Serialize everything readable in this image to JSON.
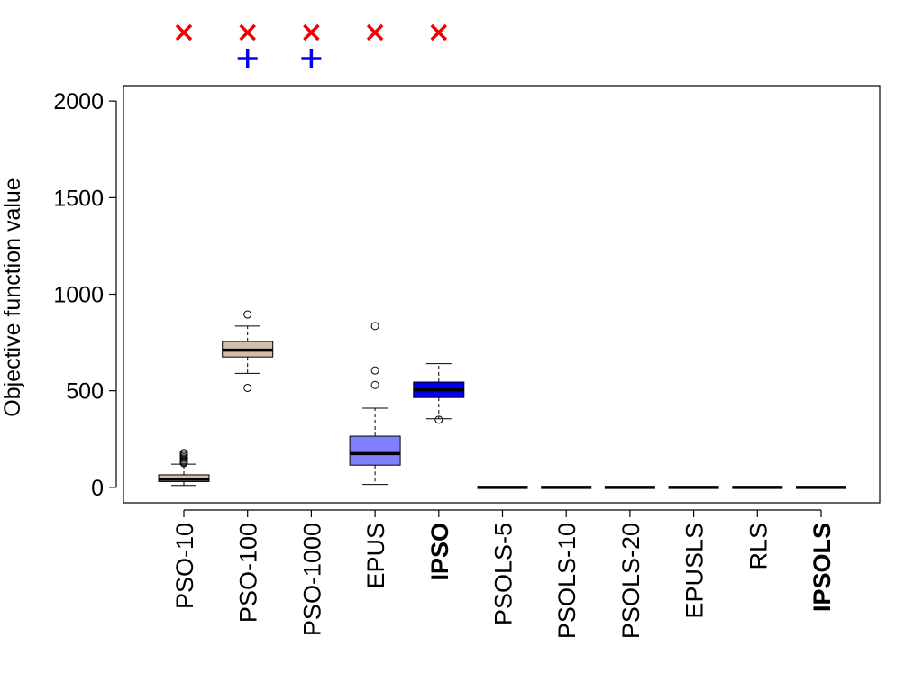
{
  "chart_data": {
    "type": "boxplot",
    "title": "",
    "xlabel": "",
    "ylabel": "Objective function value",
    "ylim": [
      -80,
      2080
    ],
    "yticks": [
      0,
      500,
      1000,
      1500,
      2000
    ],
    "grid": false,
    "legend": "none",
    "categories": [
      "PSO-10",
      "PSO-100",
      "PSO-1000",
      "EPUS",
      "IPSO",
      "PSOLS-5",
      "PSOLS-10",
      "PSOLS-20",
      "EPUSLS",
      "RLS",
      "IPSOLS"
    ],
    "bold_categories": [
      "IPSO",
      "IPSOLS"
    ],
    "boxes": [
      {
        "name": "PSO-10",
        "color": "#d2bfa8",
        "min": 10,
        "q1": 30,
        "median": 42,
        "q3": 65,
        "max": 120,
        "outliers": [
          125,
          132,
          140,
          148,
          155,
          163,
          170,
          178
        ]
      },
      {
        "name": "PSO-100",
        "color": "#d2bfa8",
        "min": 590,
        "q1": 675,
        "median": 710,
        "q3": 755,
        "max": 835,
        "outliers": [
          515,
          895
        ]
      },
      {
        "name": "PSO-1000",
        "color": "#d2bfa8",
        "min": null,
        "q1": null,
        "median": null,
        "q3": null,
        "max": null,
        "outliers": []
      },
      {
        "name": "EPUS",
        "color": "#8080ff",
        "min": 15,
        "q1": 115,
        "median": 175,
        "q3": 265,
        "max": 410,
        "outliers": [
          530,
          605,
          835
        ]
      },
      {
        "name": "IPSO",
        "color": "#0000ee",
        "min": 355,
        "q1": 465,
        "median": 505,
        "q3": 545,
        "max": 640,
        "outliers": [
          350
        ]
      },
      {
        "name": "PSOLS-5",
        "color": "#000000",
        "min": 0,
        "q1": 0,
        "median": 0,
        "q3": 0,
        "max": 0,
        "outliers": []
      },
      {
        "name": "PSOLS-10",
        "color": "#000000",
        "min": 0,
        "q1": 0,
        "median": 0,
        "q3": 0,
        "max": 0,
        "outliers": []
      },
      {
        "name": "PSOLS-20",
        "color": "#000000",
        "min": 0,
        "q1": 0,
        "median": 0,
        "q3": 0,
        "max": 0,
        "outliers": []
      },
      {
        "name": "EPUSLS",
        "color": "#000000",
        "min": 0,
        "q1": 0,
        "median": 0,
        "q3": 0,
        "max": 0,
        "outliers": []
      },
      {
        "name": "RLS",
        "color": "#000000",
        "min": 0,
        "q1": 0,
        "median": 0,
        "q3": 0,
        "max": 0,
        "outliers": []
      },
      {
        "name": "IPSOLS",
        "color": "#000000",
        "min": 0,
        "q1": 0,
        "median": 0,
        "q3": 0,
        "max": 0,
        "outliers": []
      }
    ],
    "markers": [
      {
        "category": "PSO-10",
        "symbol": "x",
        "color": "#ee0000",
        "row": 1
      },
      {
        "category": "PSO-100",
        "symbol": "x",
        "color": "#ee0000",
        "row": 1
      },
      {
        "category": "PSO-1000",
        "symbol": "x",
        "color": "#ee0000",
        "row": 1
      },
      {
        "category": "EPUS",
        "symbol": "x",
        "color": "#ee0000",
        "row": 1
      },
      {
        "category": "IPSO",
        "symbol": "x",
        "color": "#ee0000",
        "row": 1
      },
      {
        "category": "PSO-100",
        "symbol": "plus",
        "color": "#0000ee",
        "row": 2
      },
      {
        "category": "PSO-1000",
        "symbol": "plus",
        "color": "#0000ee",
        "row": 2
      }
    ]
  }
}
